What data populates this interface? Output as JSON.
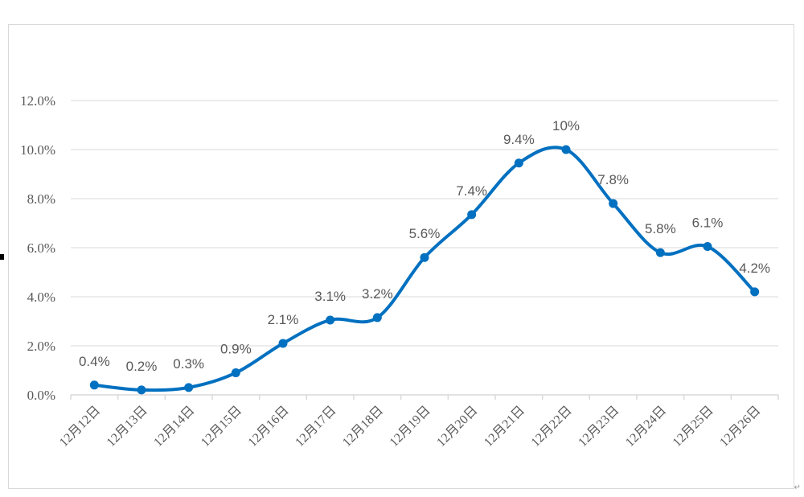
{
  "colors": {
    "series": "#0070c0",
    "grid": "#d9d9d9",
    "text": "#595959"
  },
  "chart_data": {
    "type": "line",
    "smooth": true,
    "title": "",
    "xlabel": "",
    "ylabel": "",
    "ylim": [
      0,
      12
    ],
    "yticks": [
      "0.0%",
      "2.0%",
      "4.0%",
      "6.0%",
      "8.0%",
      "10.0%",
      "12.0%"
    ],
    "grid": true,
    "legend": "none",
    "categories": [
      "12月12日",
      "12月13日",
      "12月14日",
      "12月15日",
      "12月16日",
      "12月17日",
      "12月18日",
      "12月19日",
      "12月20日",
      "12月21日",
      "12月22日",
      "12月23日",
      "12月24日",
      "12月25日",
      "12月26日"
    ],
    "values": [
      0.4,
      0.2,
      0.3,
      0.9,
      2.1,
      3.05,
      3.15,
      5.6,
      7.35,
      9.45,
      10.0,
      7.8,
      5.8,
      6.05,
      4.2
    ],
    "data_labels": [
      "0.4%",
      "0.2%",
      "0.3%",
      "0.9%",
      "2.1%",
      "3.1%",
      "3.2%",
      "5.6%",
      "7.4%",
      "9.4%",
      "10%",
      "7.8%",
      "5.8%",
      "6.1%",
      "4.2%"
    ]
  }
}
